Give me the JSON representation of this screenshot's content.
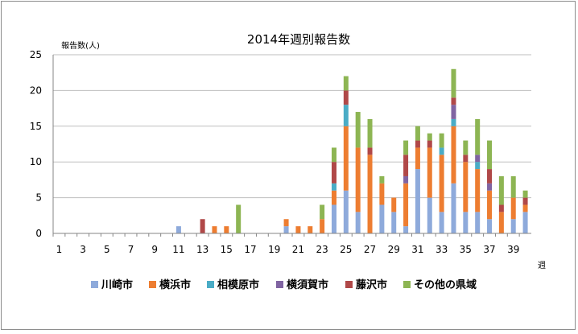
{
  "chart_data": {
    "type": "bar",
    "stacked": true,
    "title": "2014年週別報告数",
    "ylabel": "報告数(人)",
    "xlabel": "週",
    "ylim": [
      0,
      25
    ],
    "yticks": [
      0,
      5,
      10,
      15,
      20,
      25
    ],
    "grid": true,
    "legend_position": "bottom",
    "categories": [
      1,
      2,
      3,
      4,
      5,
      6,
      7,
      8,
      9,
      10,
      11,
      12,
      13,
      14,
      15,
      16,
      17,
      18,
      19,
      20,
      21,
      22,
      23,
      24,
      25,
      26,
      27,
      28,
      29,
      30,
      31,
      32,
      33,
      34,
      35,
      36,
      37,
      38,
      39,
      40
    ],
    "xtick_labels": [
      1,
      3,
      5,
      7,
      9,
      11,
      13,
      15,
      17,
      19,
      21,
      23,
      25,
      27,
      29,
      31,
      33,
      35,
      37,
      39
    ],
    "series": [
      {
        "name": "川崎市",
        "color": "#8eaadb",
        "values": [
          0,
          0,
          0,
          0,
          0,
          0,
          0,
          0,
          0,
          0,
          1,
          0,
          0,
          0,
          0,
          0,
          0,
          0,
          0,
          1,
          0,
          0,
          0,
          4,
          6,
          3,
          0,
          4,
          3,
          1,
          9,
          5,
          3,
          7,
          3,
          3,
          2,
          0,
          2,
          3
        ]
      },
      {
        "name": "横浜市",
        "color": "#ed7d31",
        "values": [
          0,
          0,
          0,
          0,
          0,
          0,
          0,
          0,
          0,
          0,
          0,
          0,
          0,
          1,
          1,
          0,
          0,
          0,
          0,
          1,
          1,
          1,
          2,
          2,
          9,
          9,
          11,
          3,
          2,
          6,
          3,
          7,
          8,
          8,
          7,
          6,
          4,
          3,
          3,
          1
        ]
      },
      {
        "name": "相模原市",
        "color": "#4aacc6",
        "values": [
          0,
          0,
          0,
          0,
          0,
          0,
          0,
          0,
          0,
          0,
          0,
          0,
          0,
          0,
          0,
          0,
          0,
          0,
          0,
          0,
          0,
          0,
          0,
          1,
          3,
          0,
          0,
          0,
          0,
          0,
          0,
          0,
          1,
          1,
          0,
          1,
          0,
          0,
          0,
          0
        ]
      },
      {
        "name": "横須賀市",
        "color": "#8064a2",
        "values": [
          0,
          0,
          0,
          0,
          0,
          0,
          0,
          0,
          0,
          0,
          0,
          0,
          0,
          0,
          0,
          0,
          0,
          0,
          0,
          0,
          0,
          0,
          0,
          0,
          0,
          0,
          0,
          0,
          0,
          1,
          0,
          0,
          0,
          2,
          0,
          1,
          1,
          0,
          0,
          0
        ]
      },
      {
        "name": "藤沢市",
        "color": "#b04848",
        "values": [
          0,
          0,
          0,
          0,
          0,
          0,
          0,
          0,
          0,
          0,
          0,
          0,
          2,
          0,
          0,
          0,
          0,
          0,
          0,
          0,
          0,
          0,
          0,
          3,
          2,
          0,
          1,
          0,
          0,
          3,
          1,
          1,
          0,
          1,
          1,
          0,
          2,
          1,
          0,
          1
        ]
      },
      {
        "name": "その他の県域",
        "color": "#8db553",
        "values": [
          0,
          0,
          0,
          0,
          0,
          0,
          0,
          0,
          0,
          0,
          0,
          0,
          0,
          0,
          0,
          4,
          0,
          0,
          0,
          0,
          0,
          0,
          2,
          2,
          2,
          5,
          4,
          1,
          0,
          2,
          2,
          1,
          2,
          4,
          2,
          5,
          4,
          4,
          3,
          1
        ]
      }
    ]
  }
}
